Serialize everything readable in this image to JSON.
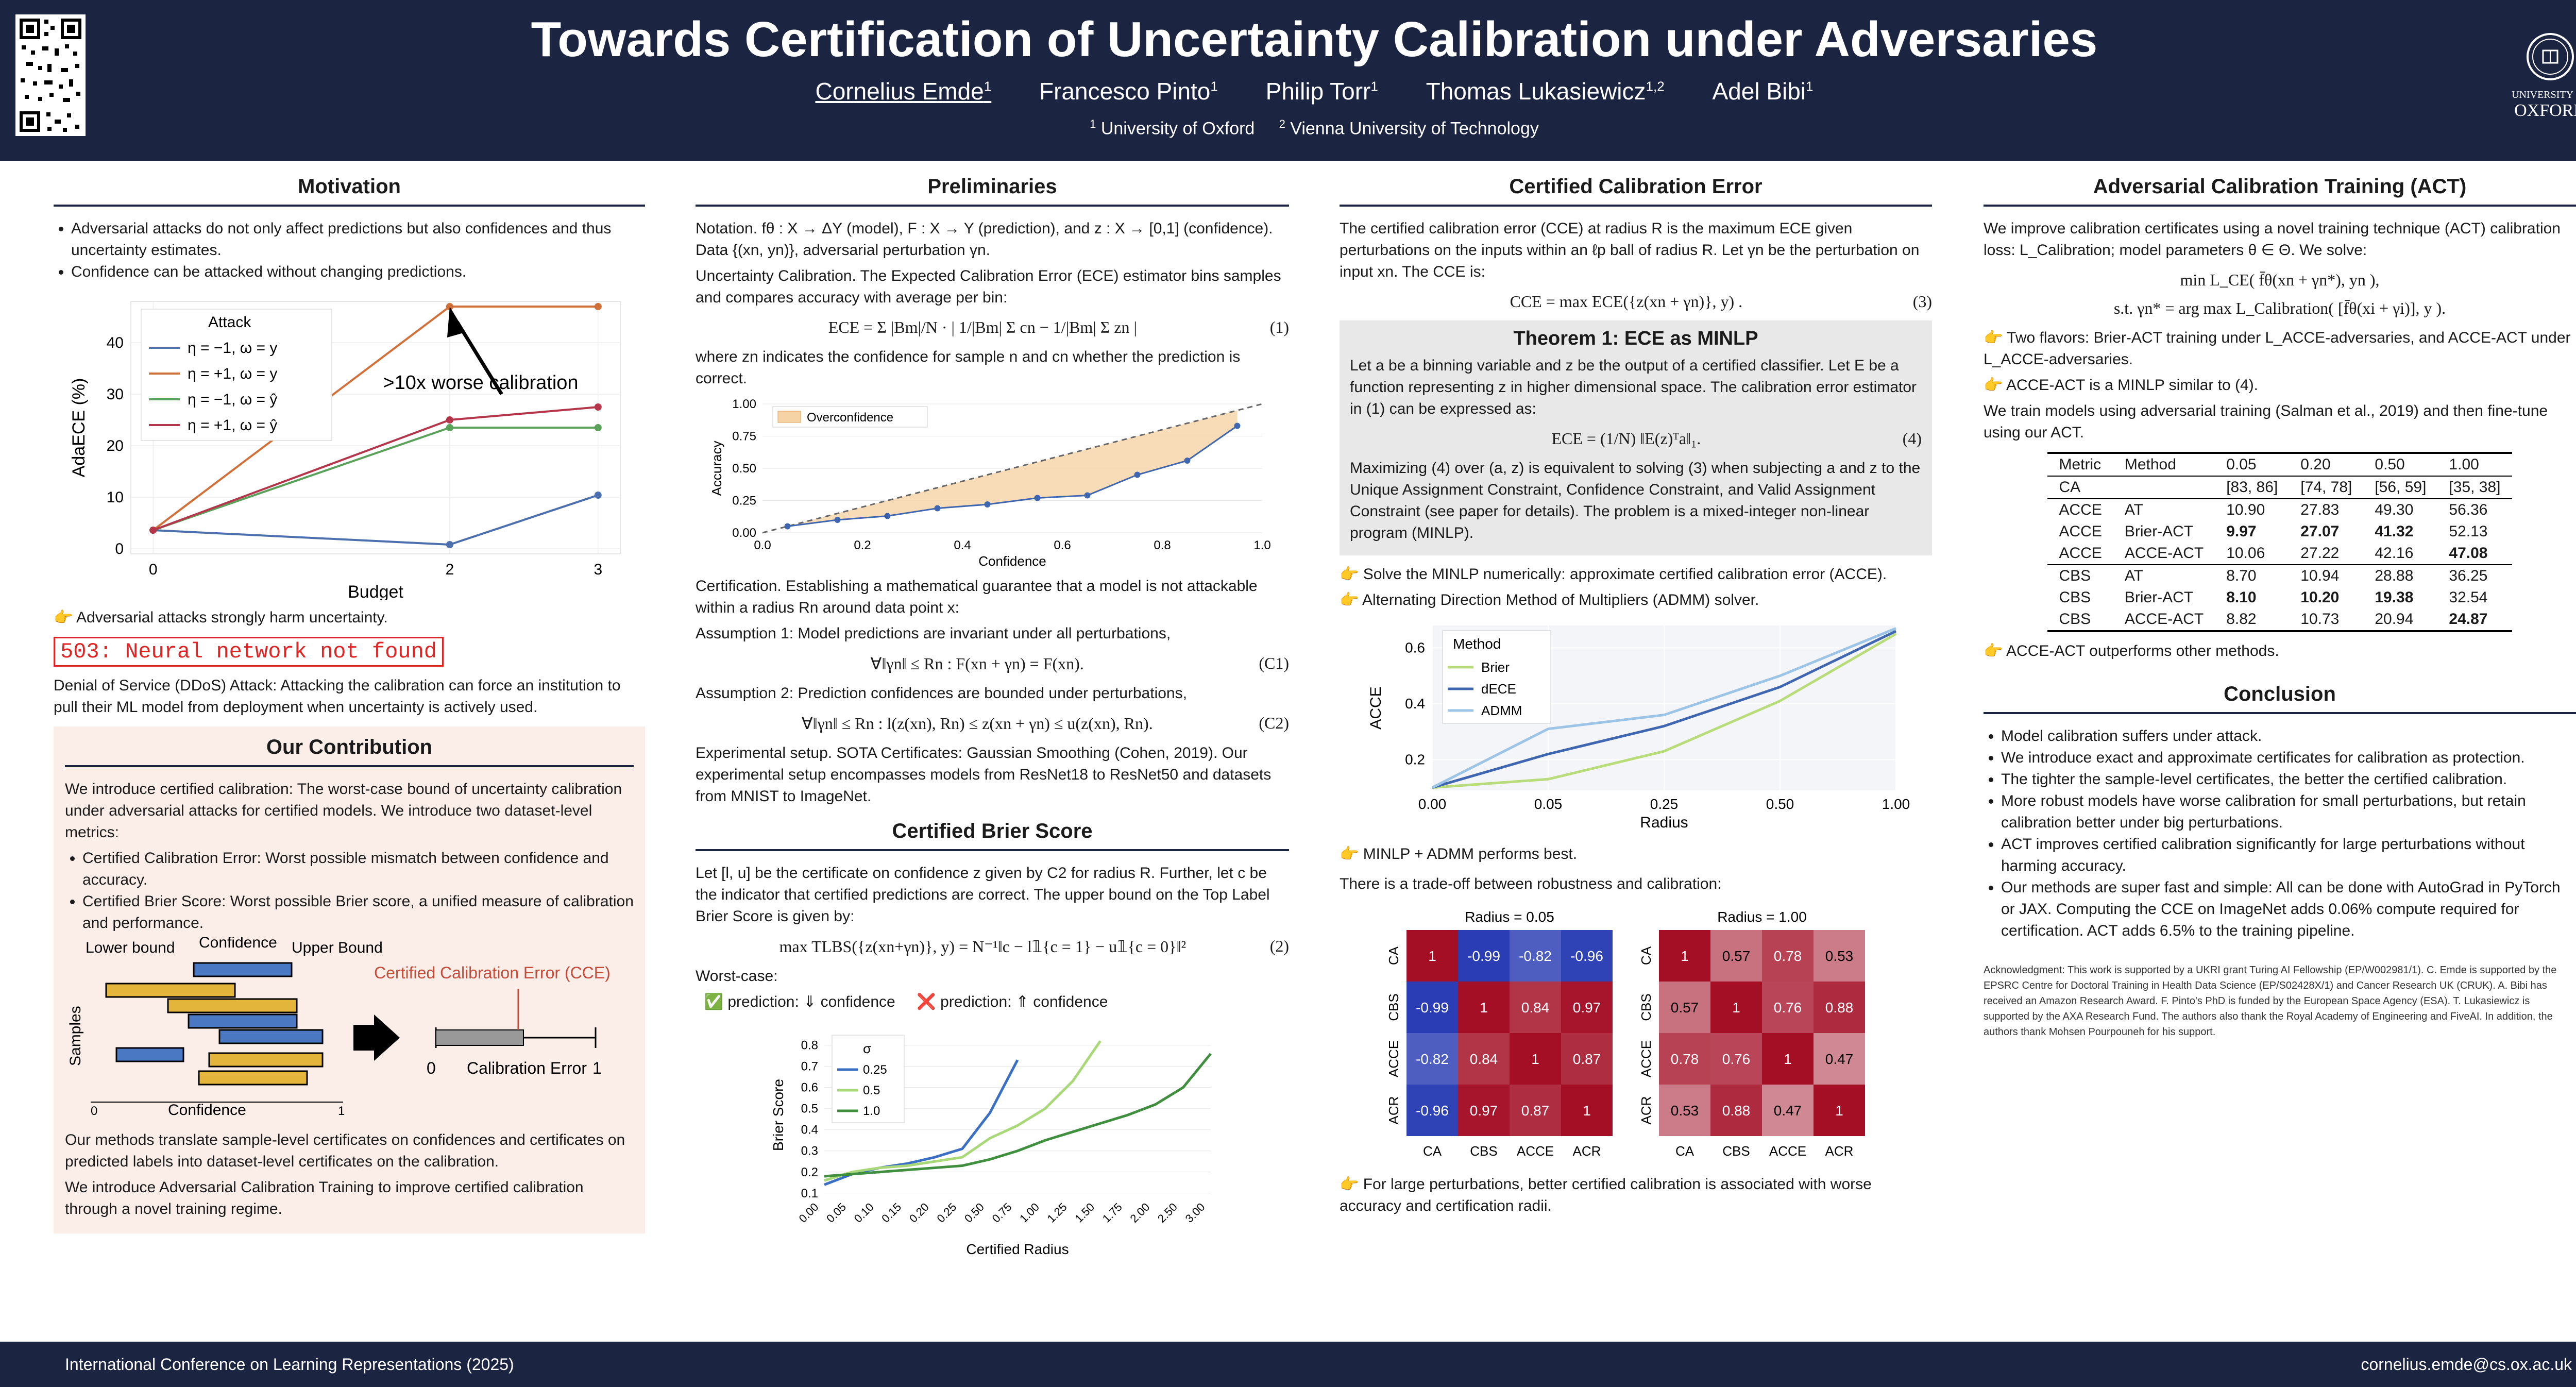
{
  "header": {
    "title": "Towards Certification of Uncertainty Calibration under Adversaries",
    "authors": [
      "Cornelius Emde",
      "Francesco Pinto",
      "Philip Torr",
      "Thomas Lukasiewicz",
      "Adel Bibi"
    ],
    "author_marks": [
      "1",
      "1",
      "1",
      "1,2",
      "1"
    ],
    "affiliations": [
      "University of Oxford",
      "Vienna University of Technology"
    ],
    "logo_text": [
      "UNIVERSITY OF",
      "OXFORD"
    ]
  },
  "motivation": {
    "title": "Motivation",
    "bullets": [
      "Adversarial attacks do not only affect predictions but also confidences and thus uncertainty estimates.",
      "Confidence can be attacked without changing predictions."
    ],
    "note": "👉 Adversarial attacks strongly harm uncertainty.",
    "error": "503: Neural network not found",
    "ddos": "Denial of Service (DDoS) Attack: Attacking the calibration can force an institution to pull their ML model from deployment when uncertainty is actively used."
  },
  "contribution": {
    "title": "Our Contribution",
    "intro": "We introduce certified calibration: The worst-case bound of uncertainty calibration under adversarial attacks for certified models. We introduce two dataset-level metrics:",
    "bullets": [
      "Certified Calibration Error: Worst possible mismatch between confidence and accuracy.",
      "Certified Brier Score: Worst possible Brier score, a unified measure of calibration and performance."
    ],
    "diagram_labels": [
      "Lower bound",
      "Confidence",
      "Upper Bound",
      "Certified Calibration Error (CCE)",
      "Samples",
      "Confidence",
      "0",
      "1",
      "0",
      "Calibration Error",
      "1"
    ],
    "p1": "Our methods translate sample-level certificates on confidences and certificates on predicted labels into dataset-level certificates on the calibration.",
    "p2": "We introduce Adversarial Calibration Training to improve certified calibration through a novel training regime."
  },
  "preliminaries": {
    "title": "Preliminaries",
    "notation": "Notation. fθ : X → ΔY (model), F : X → Y (prediction), and z : X → [0,1] (confidence). Data {(xn, yn)}, adversarial perturbation γn.",
    "uc": "Uncertainty Calibration. The Expected Calibration Error (ECE) estimator bins samples and compares accuracy with average per bin:",
    "eq1": "ECE = Σ |Bm|/N · | 1/|Bm| Σ cn − 1/|Bm| Σ zn |",
    "eq1_num": "(1)",
    "after_eq1": "where zn indicates the confidence for sample n and cn whether the prediction is correct.",
    "cert": "Certification. Establishing a mathematical guarantee that a model is not attackable within a radius Rn around data point x:",
    "a1": "Assumption 1: Model predictions are invariant under all perturbations,",
    "a1eq": "∀‖γn‖ ≤ Rn :  F(xn + γn) = F(xn).",
    "a1num": "(C1)",
    "a2": "Assumption 2: Prediction confidences are bounded under perturbations,",
    "a2eq": "∀‖γn‖ ≤ Rn :  l(z(xn), Rn) ≤ z(xn + γn) ≤ u(z(xn), Rn).",
    "a2num": "(C2)",
    "exp": "Experimental setup. SOTA Certificates: Gaussian Smoothing (Cohen, 2019). Our experimental setup encompasses models from ResNet18 to ResNet50 and datasets from MNIST to ImageNet."
  },
  "brier": {
    "title": "Certified Brier Score",
    "text": "Let [l, u] be the certificate on confidence z given by C2 for radius R. Further, let c be the indicator that certified predictions are correct. The upper bound on the Top Label Brier Score is given by:",
    "eq": "max TLBS({z(xn+γn)}, y) = N⁻¹‖c − l𝟙{c = 1} − u𝟙{c = 0}‖²",
    "eq_num": "(2)",
    "worst": "Worst-case:",
    "wc1": "✅ prediction: ⇓ confidence",
    "wc2": "❌ prediction: ⇑ confidence"
  },
  "cce": {
    "title": "Certified Calibration Error",
    "text": "The certified calibration error (CCE) at radius R is the maximum ECE given perturbations on the inputs within an ℓp ball of radius R. Let γn be the perturbation on input xn. The CCE is:",
    "eq": "CCE = max ECE({z(xn + γn)}, y) .",
    "eq_num": "(3)",
    "thm_title": "Theorem 1: ECE as MINLP",
    "thm_text": "Let a be a binning variable and z be the output of a certified classifier. Let E be a function representing z in higher dimensional space. The calibration error estimator in (1) can be expressed as:",
    "thm_eq": "ECE = (1/N) ‖E(z)ᵀa‖₁.",
    "thm_num": "(4)",
    "thm_text2": "Maximizing (4) over (a, z) is equivalent to solving (3) when subjecting a and z to the Unique Assignment Constraint, Confidence Constraint, and Valid Assignment Constraint (see paper for details). The problem is a mixed-integer non-linear program (MINLP).",
    "b1": "👉 Solve the MINLP numerically: approximate certified calibration error (ACCE).",
    "b2": "👉 Alternating Direction Method of Multipliers (ADMM) solver.",
    "b3": "👉 MINLP + ADMM performs best.",
    "tradeoff": "There is a trade-off between robustness and calibration:",
    "b4": "👉 For large perturbations, better certified calibration is associated with worse accuracy and certification radii."
  },
  "act": {
    "title": "Adversarial Calibration Training (ACT)",
    "text": "We improve calibration certificates using a novel training technique (ACT) calibration loss: L_Calibration; model parameters θ ∈ Θ. We solve:",
    "eq1": "min L_CE( f̄θ(xn + γn*), yn ),",
    "eq2": "s.t.   γn* = arg max L_Calibration( [f̄θ(xi + γi)], y ).",
    "b1": "👉 Two flavors: Brier-ACT training under L_ACCE-adversaries, and ACCE-ACT under L_ACCE-adversaries.",
    "b2": "👉 ACCE-ACT is a MINLP similar to (4).",
    "text2": "We train models using adversarial training (Salman et al., 2019) and then fine-tune using our ACT.",
    "table_head": [
      "Metric",
      "Method",
      "0.05",
      "0.20",
      "0.50",
      "1.00"
    ],
    "ca_row": [
      "CA",
      "",
      "[83, 86]",
      "[74, 78]",
      "[56, 59]",
      "[35, 38]"
    ],
    "rows": [
      [
        "ACCE",
        "AT",
        "10.90",
        "27.83",
        "49.30",
        "56.36"
      ],
      [
        "ACCE",
        "Brier-ACT",
        "9.97",
        "27.07",
        "41.32",
        "52.13"
      ],
      [
        "ACCE",
        "ACCE-ACT",
        "10.06",
        "27.22",
        "42.16",
        "47.08"
      ],
      [
        "CBS",
        "AT",
        "8.70",
        "10.94",
        "28.88",
        "36.25"
      ],
      [
        "CBS",
        "Brier-ACT",
        "8.10",
        "10.20",
        "19.38",
        "32.54"
      ],
      [
        "CBS",
        "ACCE-ACT",
        "8.82",
        "10.73",
        "20.94",
        "24.87"
      ]
    ],
    "b3": "👉 ACCE-ACT outperforms other methods."
  },
  "conclusion": {
    "title": "Conclusion",
    "bullets": [
      "Model calibration suffers under attack.",
      "We introduce exact and approximate certificates for calibration as protection.",
      "The tighter the sample-level certificates, the better the certified calibration.",
      "More robust models have worse calibration for small perturbations, but retain calibration better under big perturbations.",
      "ACT improves certified calibration significantly for large perturbations without harming accuracy.",
      "Our methods are super fast and simple: All can be done with AutoGrad in PyTorch or JAX. Computing the CCE on ImageNet adds 0.06% compute required for certification. ACT adds 6.5% to the training pipeline."
    ],
    "ack": "Acknowledgment: This work is supported by a UKRI grant Turing AI Fellowship (EP/W002981/1). C. Emde is supported by the EPSRC Centre for Doctoral Training in Health Data Science (EP/S02428X/1) and Cancer Research UK (CRUK). A. Bibi has received an Amazon Research Award. F. Pinto's PhD is funded by the European Space Agency (ESA). T. Lukasiewicz is supported by the AXA Research Fund. The authors also thank the Royal Academy of Engineering and FiveAI. In addition, the authors thank Mohsen Pourpouneh for his support."
  },
  "footer": {
    "conf": "International Conference on Learning Representations (2025)",
    "email": "cornelius.emde@cs.ox.ac.uk"
  },
  "chart_data": [
    {
      "type": "line",
      "id": "adaece",
      "xlabel": "Budget",
      "ylabel": "AdaECE (%)",
      "x": [
        0,
        2,
        3
      ],
      "xlim": [
        -0.15,
        3.15
      ],
      "ylim": [
        -1,
        48
      ],
      "xticks": [
        0,
        2,
        3
      ],
      "yticks": [
        0,
        10,
        20,
        30,
        40
      ],
      "legend_title": "Attack",
      "series": [
        {
          "name": "η = −1, ω = y",
          "color": "#4c6fae",
          "values": [
            3.6,
            0.8,
            10.4
          ]
        },
        {
          "name": "η = +1, ω = y",
          "color": "#d2703a",
          "values": [
            3.6,
            47,
            47
          ]
        },
        {
          "name": "η = −1, ω = ŷ",
          "color": "#5aa15a",
          "values": [
            3.6,
            23.5,
            23.5
          ]
        },
        {
          "name": "η = +1, ω = ŷ",
          "color": "#b5364a",
          "values": [
            3.6,
            25,
            27.5
          ]
        }
      ],
      "annotation": ">10x worse calibration"
    },
    {
      "type": "line",
      "id": "reliability",
      "xlabel": "Confidence",
      "ylabel": "Accuracy",
      "xlim": [
        0,
        1
      ],
      "ylim": [
        0,
        1
      ],
      "xticks": [
        0.0,
        0.2,
        0.4,
        0.6,
        0.8,
        1.0
      ],
      "yticks": [
        0.0,
        0.25,
        0.5,
        0.75,
        1.0
      ],
      "legend": "Overconfidence",
      "x": [
        0.05,
        0.15,
        0.25,
        0.35,
        0.45,
        0.55,
        0.65,
        0.75,
        0.85,
        0.95
      ],
      "values": [
        0.05,
        0.1,
        0.13,
        0.19,
        0.22,
        0.27,
        0.29,
        0.45,
        0.56,
        0.83
      ]
    },
    {
      "type": "line",
      "id": "brier",
      "xlabel": "Certified Radius",
      "ylabel": "Brier Score",
      "legend_title": "σ",
      "categories": [
        "0.00",
        "0.05",
        "0.10",
        "0.15",
        "0.20",
        "0.25",
        "0.50",
        "0.75",
        "1.00",
        "1.25",
        "1.50",
        "1.75",
        "2.00",
        "2.50",
        "3.00"
      ],
      "ylim": [
        0.08,
        0.86
      ],
      "yticks": [
        0.1,
        0.2,
        0.3,
        0.4,
        0.5,
        0.6,
        0.7,
        0.8
      ],
      "series": [
        {
          "name": "0.25",
          "color": "#3a6fc4",
          "values": [
            0.14,
            0.19,
            0.22,
            0.24,
            0.27,
            0.31,
            0.48,
            0.73,
            null,
            null,
            null,
            null,
            null,
            null,
            null
          ]
        },
        {
          "name": "0.5",
          "color": "#a9d878",
          "values": [
            0.16,
            0.2,
            0.22,
            0.23,
            0.25,
            0.27,
            0.36,
            0.42,
            0.5,
            0.63,
            0.82,
            null,
            null,
            null,
            null
          ]
        },
        {
          "name": "1.0",
          "color": "#3f8f3f",
          "values": [
            0.18,
            0.19,
            0.2,
            0.21,
            0.22,
            0.23,
            0.26,
            0.3,
            0.35,
            0.39,
            0.43,
            0.47,
            0.52,
            0.6,
            0.76
          ]
        }
      ]
    },
    {
      "type": "line",
      "id": "acce",
      "xlabel": "Radius",
      "ylabel": "ACCE",
      "legend_title": "Method",
      "x": [
        0.0,
        0.05,
        0.25,
        0.5,
        1.0
      ],
      "xticks": [
        "0.00",
        "0.05",
        "0.25",
        "0.50",
        "1.00"
      ],
      "ylim": [
        0.09,
        0.68
      ],
      "yticks": [
        0.2,
        0.4,
        0.6
      ],
      "series": [
        {
          "name": "Brier",
          "color": "#b8dc7a",
          "values": [
            0.1,
            0.13,
            0.23,
            0.41,
            0.65
          ]
        },
        {
          "name": "dECE",
          "color": "#3f66b0",
          "values": [
            0.1,
            0.22,
            0.32,
            0.46,
            0.66
          ]
        },
        {
          "name": "ADMM",
          "color": "#9cc4e6",
          "values": [
            0.1,
            0.31,
            0.36,
            0.5,
            0.67
          ]
        }
      ]
    },
    {
      "type": "heatmap",
      "id": "hm1",
      "title": "Radius = 0.05",
      "labels": [
        "CA",
        "CBS",
        "ACCE",
        "ACR"
      ],
      "values": [
        [
          1,
          -0.99,
          -0.82,
          -0.96
        ],
        [
          -0.99,
          1,
          0.84,
          0.97
        ],
        [
          -0.82,
          0.84,
          1,
          0.87
        ],
        [
          -0.96,
          0.97,
          0.87,
          1
        ]
      ]
    },
    {
      "type": "heatmap",
      "id": "hm2",
      "title": "Radius = 1.00",
      "labels": [
        "CA",
        "CBS",
        "ACCE",
        "ACR"
      ],
      "values": [
        [
          1,
          0.57,
          0.78,
          0.53
        ],
        [
          0.57,
          1,
          0.76,
          0.88
        ],
        [
          0.78,
          0.76,
          1,
          0.47
        ],
        [
          0.53,
          0.88,
          0.47,
          1
        ]
      ]
    }
  ]
}
